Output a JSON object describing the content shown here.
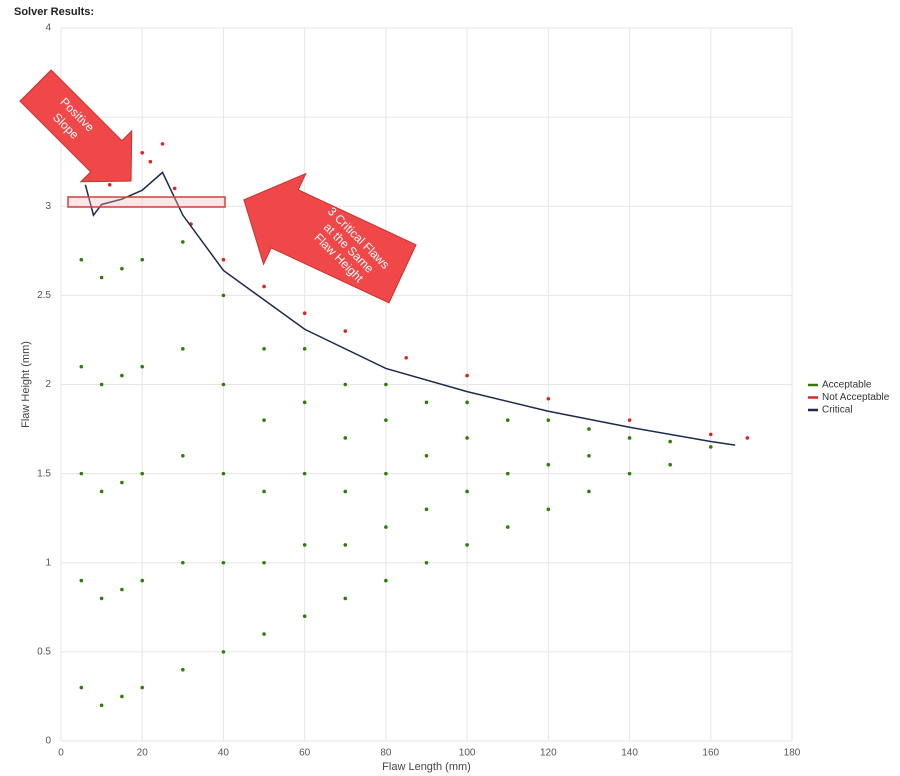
{
  "header": {
    "title": "Solver Results:"
  },
  "chart_data": {
    "type": "scatter",
    "xlabel": "Flaw Length (mm)",
    "ylabel": "Flaw Height (mm)",
    "xlim": [
      0,
      180
    ],
    "ylim": [
      0,
      4
    ],
    "xticks": [
      0,
      20,
      40,
      60,
      80,
      100,
      120,
      140,
      160,
      180
    ],
    "yticks": [
      0,
      0.5,
      1,
      1.5,
      2,
      2.5,
      3,
      3.5,
      4
    ],
    "grid": true,
    "legend": "right",
    "series": [
      {
        "name": "Acceptable",
        "color": "#2f7d07",
        "marker": "dot",
        "x": [
          5,
          5,
          5,
          5,
          5,
          10,
          10,
          10,
          10,
          10,
          15,
          15,
          15,
          15,
          15,
          20,
          20,
          20,
          20,
          20,
          30,
          30,
          30,
          30,
          30,
          40,
          40,
          40,
          40,
          40,
          50,
          50,
          50,
          50,
          50,
          60,
          60,
          60,
          60,
          60,
          70,
          70,
          70,
          70,
          70,
          80,
          80,
          80,
          80,
          80,
          90,
          90,
          90,
          90,
          100,
          100,
          100,
          100,
          110,
          110,
          110,
          120,
          120,
          120,
          130,
          130,
          130,
          140,
          140,
          150,
          150,
          160
        ],
        "values": [
          0.3,
          0.9,
          1.5,
          2.1,
          2.7,
          0.2,
          0.8,
          1.4,
          2.0,
          2.6,
          0.25,
          0.85,
          1.45,
          2.05,
          2.65,
          0.3,
          0.9,
          1.5,
          2.1,
          2.7,
          0.4,
          1.0,
          1.6,
          2.2,
          2.8,
          0.5,
          1.0,
          1.5,
          2.0,
          2.5,
          0.6,
          1.0,
          1.4,
          1.8,
          2.2,
          0.7,
          1.1,
          1.5,
          1.9,
          2.2,
          0.8,
          1.1,
          1.4,
          1.7,
          2.0,
          0.9,
          1.2,
          1.5,
          1.8,
          2.0,
          1.0,
          1.3,
          1.6,
          1.9,
          1.1,
          1.4,
          1.7,
          1.9,
          1.2,
          1.5,
          1.8,
          1.3,
          1.55,
          1.8,
          1.4,
          1.6,
          1.75,
          1.5,
          1.7,
          1.55,
          1.68,
          1.65
        ]
      },
      {
        "name": "Not Acceptable",
        "color": "#e02424",
        "marker": "dot",
        "x": [
          12,
          16,
          20,
          22,
          25,
          28,
          32,
          40,
          50,
          60,
          70,
          85,
          100,
          120,
          140,
          160,
          169
        ],
        "values": [
          3.12,
          3.15,
          3.3,
          3.25,
          3.35,
          3.1,
          2.9,
          2.7,
          2.55,
          2.4,
          2.3,
          2.15,
          2.05,
          1.92,
          1.8,
          1.72,
          1.7
        ]
      },
      {
        "name": "Critical",
        "color": "#1b2a4e",
        "marker": "line",
        "x": [
          6,
          8,
          10,
          15,
          20,
          25,
          30,
          40,
          60,
          80,
          100,
          120,
          140,
          160,
          166
        ],
        "values": [
          3.12,
          2.95,
          3.01,
          3.04,
          3.09,
          3.19,
          2.95,
          2.64,
          2.31,
          2.09,
          1.96,
          1.85,
          1.76,
          1.68,
          1.66
        ]
      }
    ],
    "annotations": [
      {
        "lines": [
          "Positive",
          "Slope"
        ]
      },
      {
        "lines": [
          "3 Critical Flaws",
          "at the Same",
          "Flaw Height"
        ]
      }
    ]
  }
}
